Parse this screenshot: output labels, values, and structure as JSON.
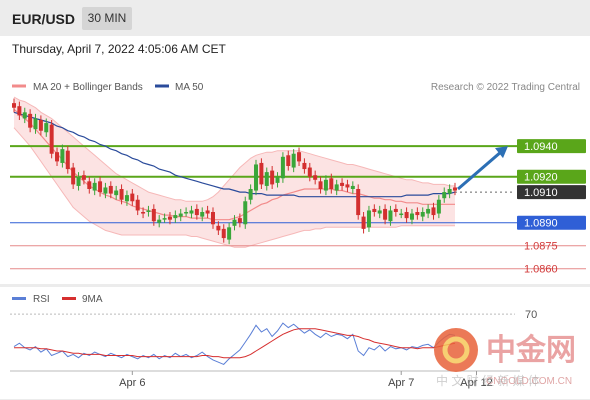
{
  "header": {
    "symbol": "EUR/USD",
    "interval": "30 MIN"
  },
  "timestamp": "Thursday, April 7, 2022 4:05:06 AM CET",
  "legend": {
    "ma20": "MA 20 + Bollinger Bands",
    "ma50": "MA 50",
    "rsi": "RSI",
    "rsi_ma": "9MA"
  },
  "credit": "Research © 2022 Trading Central",
  "watermark": {
    "name": "中金网",
    "domain": "CNGOLD.COM.CN",
    "slogan": "中 文 财 经 新 媒 体"
  },
  "colors": {
    "ma20": "#f28b8b",
    "ma50": "#2a4b9b",
    "up": "#3aa63a",
    "down": "#d32f2f",
    "resistance": "#5aa61a",
    "pivot": "#2f5fd6",
    "support": "#e07a7a",
    "rsi": "#5b7fd6",
    "rsi_ma": "#d62f2f"
  },
  "chart_data": {
    "type": "candlestick",
    "ylim": [
      1.0852,
      1.0972
    ],
    "levels": [
      {
        "value": 1.094,
        "label": "1.0940",
        "kind": "resistance"
      },
      {
        "value": 1.092,
        "label": "1.0920",
        "kind": "resistance"
      },
      {
        "value": 1.091,
        "label": "1.0910",
        "kind": "current"
      },
      {
        "value": 1.089,
        "label": "1.0890",
        "kind": "pivot"
      },
      {
        "value": 1.0875,
        "label": "1.0875",
        "kind": "support"
      },
      {
        "value": 1.086,
        "label": "1.0860",
        "kind": "support"
      }
    ],
    "x_ticks": [
      "Apr 6",
      "Apr 7",
      "Apr 12"
    ],
    "close": [
      1.0965,
      1.096,
      1.0962,
      1.0952,
      1.0958,
      1.095,
      1.0955,
      1.0935,
      1.093,
      1.0938,
      1.0925,
      1.0915,
      1.092,
      1.0918,
      1.0912,
      1.0916,
      1.091,
      1.0913,
      1.0909,
      1.0911,
      1.0905,
      1.0908,
      1.0904,
      1.0898,
      1.0896,
      1.0898,
      1.0891,
      1.0892,
      1.0893,
      1.0892,
      1.0895,
      1.0896,
      1.0897,
      1.0898,
      1.0895,
      1.0897,
      1.0896,
      1.0889,
      1.0885,
      1.088,
      1.0887,
      1.0892,
      1.089,
      1.0904,
      1.0912,
      1.0928,
      1.0915,
      1.0923,
      1.0915,
      1.092,
      1.0933,
      1.0927,
      1.0935,
      1.093,
      1.0925,
      1.092,
      1.0918,
      1.0912,
      1.0918,
      1.0912,
      1.0915,
      1.0914,
      1.0913,
      1.0914,
      1.0895,
      1.0886,
      1.0898,
      1.0897,
      1.0898,
      1.0892,
      1.0898,
      1.0897,
      1.0896,
      1.0893,
      1.0896,
      1.0895,
      1.0897,
      1.0899,
      1.0895,
      1.0905,
      1.091,
      1.0912,
      1.0911
    ],
    "open": [
      1.0968,
      1.0966,
      1.0958,
      1.0961,
      1.0951,
      1.0957,
      1.0949,
      1.0954,
      1.0936,
      1.0929,
      1.0937,
      1.0926,
      1.0914,
      1.0921,
      1.0917,
      1.0911,
      1.0917,
      1.0909,
      1.0914,
      1.0908,
      1.0912,
      1.0904,
      1.0909,
      1.0905,
      1.0897,
      1.0897,
      1.0899,
      1.089,
      1.0893,
      1.0894,
      1.0893,
      1.0894,
      1.0897,
      1.0896,
      1.0899,
      1.0894,
      1.0898,
      1.0897,
      1.0888,
      1.0886,
      1.0879,
      1.0888,
      1.0893,
      1.0889,
      1.0905,
      1.0911,
      1.0929,
      1.0914,
      1.0924,
      1.0916,
      1.0919,
      1.0934,
      1.0926,
      1.0936,
      1.0929,
      1.0926,
      1.0921,
      1.0917,
      1.0911,
      1.0919,
      1.0911,
      1.0916,
      1.0915,
      1.0912,
      1.0912,
      1.0894,
      1.0887,
      1.0899,
      1.0896,
      1.0899,
      1.0891,
      1.0899,
      1.0896,
      1.0897,
      1.0892,
      1.0897,
      1.0894,
      1.0896,
      1.09,
      1.0896,
      1.0906,
      1.0909,
      1.0913
    ],
    "ma20": [
      1.0964,
      1.0961,
      1.0958,
      1.0955,
      1.0951,
      1.0947,
      1.0943,
      1.0939,
      1.0935,
      1.0931,
      1.0927,
      1.0923,
      1.092,
      1.0917,
      1.0914,
      1.0912,
      1.091,
      1.0908,
      1.0907,
      1.0905,
      1.0904,
      1.0903,
      1.0901,
      1.09,
      1.0899,
      1.0898,
      1.0897,
      1.0896,
      1.0895,
      1.0895,
      1.0894,
      1.0894,
      1.0894,
      1.0893,
      1.0893,
      1.0893,
      1.0893,
      1.0892,
      1.0892,
      1.0892,
      1.0892,
      1.0893,
      1.0894,
      1.0896,
      1.0898,
      1.09,
      1.0902,
      1.0903,
      1.0905,
      1.0906,
      1.0908,
      1.0909,
      1.091,
      1.0911,
      1.0912,
      1.0912,
      1.0912,
      1.0912,
      1.0912,
      1.0912,
      1.0911,
      1.0911,
      1.091,
      1.0909,
      1.0909,
      1.0908,
      1.0907,
      1.0906,
      1.0906,
      1.0905,
      1.0905,
      1.0904,
      1.0904,
      1.0903,
      1.0903,
      1.0903,
      1.0902,
      1.0902,
      1.0902,
      1.0902,
      1.0902,
      1.0902,
      1.0902
    ],
    "ma50": [
      1.0962,
      1.0961,
      1.096,
      1.0959,
      1.0958,
      1.0957,
      1.0956,
      1.0955,
      1.0953,
      1.0952,
      1.095,
      1.0949,
      1.0947,
      1.0946,
      1.0944,
      1.0943,
      1.0941,
      1.094,
      1.0938,
      1.0937,
      1.0935,
      1.0934,
      1.0932,
      1.0931,
      1.0929,
      1.0928,
      1.0927,
      1.0925,
      1.0924,
      1.0923,
      1.0921,
      1.092,
      1.0919,
      1.0918,
      1.0917,
      1.0916,
      1.0915,
      1.0914,
      1.0913,
      1.0912,
      1.0912,
      1.0911,
      1.091,
      1.091,
      1.0909,
      1.0909,
      1.0909,
      1.0908,
      1.0908,
      1.0908,
      1.0908,
      1.0908,
      1.0908,
      1.0907,
      1.0907,
      1.0907,
      1.0907,
      1.0907,
      1.0907,
      1.0907,
      1.0907,
      1.0907,
      1.0907,
      1.0907,
      1.0907,
      1.0907,
      1.0907,
      1.0907,
      1.0907,
      1.0907,
      1.0907,
      1.0907,
      1.0907,
      1.0908,
      1.0908,
      1.0908,
      1.0908,
      1.0908,
      1.0909,
      1.0909,
      1.0909,
      1.0909,
      1.091
    ],
    "bb_upper": [
      1.0972,
      1.097,
      1.0969,
      1.0967,
      1.0965,
      1.0962,
      1.096,
      1.0958,
      1.0955,
      1.0952,
      1.0949,
      1.0946,
      1.0943,
      1.094,
      1.0937,
      1.0934,
      1.0931,
      1.0928,
      1.0925,
      1.0922,
      1.092,
      1.0918,
      1.0916,
      1.0914,
      1.0912,
      1.091,
      1.0909,
      1.0908,
      1.0907,
      1.0906,
      1.0905,
      1.0905,
      1.0904,
      1.0904,
      1.0904,
      1.0904,
      1.0905,
      1.0907,
      1.091,
      1.0914,
      1.0918,
      1.0922,
      1.0926,
      1.0929,
      1.0932,
      1.0934,
      1.0935,
      1.0936,
      1.0936,
      1.0937,
      1.0937,
      1.0937,
      1.0937,
      1.0937,
      1.0936,
      1.0935,
      1.0934,
      1.0933,
      1.0932,
      1.0931,
      1.093,
      1.0929,
      1.0928,
      1.0928,
      1.0927,
      1.0926,
      1.0925,
      1.0924,
      1.0923,
      1.0922,
      1.0921,
      1.092,
      1.0919,
      1.0918,
      1.0918,
      1.0917,
      1.0916,
      1.0916,
      1.0915,
      1.0915,
      1.0915,
      1.0914,
      1.0914
    ],
    "bb_lower": [
      1.0952,
      1.0948,
      1.0944,
      1.094,
      1.0935,
      1.093,
      1.0925,
      1.092,
      1.0915,
      1.091,
      1.0905,
      1.09,
      1.0897,
      1.0894,
      1.0891,
      1.0889,
      1.0887,
      1.0885,
      1.0884,
      1.0883,
      1.0882,
      1.0882,
      1.0882,
      1.0882,
      1.0882,
      1.0882,
      1.0882,
      1.0882,
      1.0882,
      1.0882,
      1.0882,
      1.0882,
      1.0882,
      1.0881,
      1.0881,
      1.088,
      1.0879,
      1.0878,
      1.0877,
      1.0876,
      1.0875,
      1.0874,
      1.0874,
      1.0874,
      1.0875,
      1.0876,
      1.0877,
      1.0878,
      1.0879,
      1.088,
      1.0881,
      1.0882,
      1.0883,
      1.0884,
      1.0885,
      1.0885,
      1.0886,
      1.0886,
      1.0887,
      1.0887,
      1.0887,
      1.0887,
      1.0887,
      1.0887,
      1.0887,
      1.0887,
      1.0887,
      1.0887,
      1.0887,
      1.0887,
      1.0887,
      1.0887,
      1.0888,
      1.0888,
      1.0888,
      1.0888,
      1.0888,
      1.0888,
      1.0888,
      1.0888,
      1.0888,
      1.0888,
      1.0888
    ],
    "forecast_arrow": {
      "from": 1.0912,
      "to": 1.094
    },
    "rsi": {
      "ylim": [
        20,
        80
      ],
      "ticks": [
        70
      ],
      "values": [
        41,
        44,
        40,
        38,
        41,
        36,
        39,
        33,
        35,
        37,
        32,
        34,
        31,
        35,
        33,
        36,
        34,
        32,
        35,
        33,
        31,
        34,
        32,
        30,
        33,
        31,
        34,
        30,
        33,
        31,
        35,
        32,
        34,
        31,
        33,
        36,
        32,
        29,
        27,
        25,
        30,
        34,
        38,
        45,
        52,
        60,
        54,
        57,
        50,
        55,
        62,
        58,
        61,
        57,
        53,
        56,
        52,
        49,
        53,
        50,
        52,
        51,
        48,
        52,
        37,
        33,
        40,
        38,
        42,
        37,
        41,
        39,
        40,
        38,
        41,
        40,
        42,
        43,
        40,
        45,
        49,
        52,
        51
      ],
      "ma": [
        40,
        40,
        40,
        40,
        40,
        39,
        39,
        38,
        37,
        37,
        36,
        35,
        35,
        34,
        34,
        34,
        34,
        33,
        33,
        33,
        33,
        33,
        33,
        32,
        32,
        32,
        32,
        32,
        32,
        32,
        32,
        32,
        32,
        32,
        32,
        33,
        33,
        32,
        32,
        31,
        31,
        31,
        31,
        32,
        34,
        37,
        40,
        43,
        46,
        49,
        52,
        54,
        56,
        57,
        57,
        57,
        57,
        56,
        55,
        54,
        53,
        52,
        51,
        51,
        50,
        48,
        47,
        45,
        44,
        43,
        42,
        41,
        40,
        40,
        40,
        39,
        40,
        40,
        40,
        41,
        42,
        43,
        44
      ]
    }
  }
}
